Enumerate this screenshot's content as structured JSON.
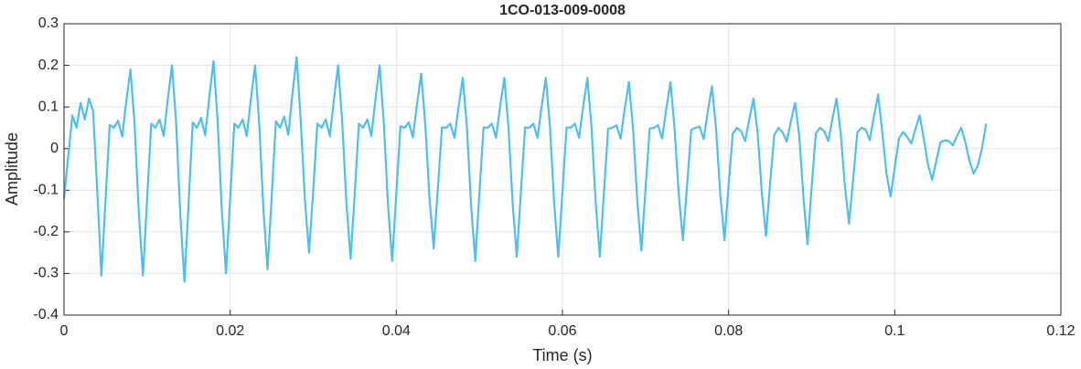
{
  "chart_data": {
    "type": "line",
    "title": "1CO-013-009-0008",
    "xlabel": "Time (s)",
    "ylabel": "Amplitude",
    "color": "#4dbeee",
    "grid": true,
    "xlim": [
      0,
      0.12
    ],
    "xticks": [
      0,
      0.02,
      0.04,
      0.06,
      0.08,
      0.1,
      0.12
    ],
    "ylim": [
      -0.4,
      0.3
    ],
    "yticks": [
      -0.4,
      -0.3,
      -0.2,
      -0.1,
      0,
      0.1,
      0.2,
      0.3
    ],
    "x": [
      0,
      0.0005,
      0.001,
      0.0015,
      0.002,
      0.0025,
      0.003,
      0.0035,
      0.004,
      0.0045,
      0.005,
      0.0055,
      0.006,
      0.0065,
      0.007,
      0.0075,
      0.008,
      0.0085,
      0.009,
      0.0095,
      0.01,
      0.0105,
      0.011,
      0.0115,
      0.012,
      0.0125,
      0.013,
      0.0135,
      0.014,
      0.0145,
      0.015,
      0.0155,
      0.016,
      0.0165,
      0.017,
      0.0175,
      0.018,
      0.0185,
      0.019,
      0.0195,
      0.02,
      0.0205,
      0.021,
      0.0215,
      0.022,
      0.0225,
      0.023,
      0.0235,
      0.024,
      0.0245,
      0.025,
      0.0255,
      0.026,
      0.0265,
      0.027,
      0.0275,
      0.028,
      0.0285,
      0.029,
      0.0295,
      0.03,
      0.0305,
      0.031,
      0.0315,
      0.032,
      0.0325,
      0.033,
      0.0335,
      0.034,
      0.0345,
      0.035,
      0.0355,
      0.036,
      0.0365,
      0.037,
      0.0375,
      0.038,
      0.0385,
      0.039,
      0.0395,
      0.04,
      0.0405,
      0.041,
      0.0415,
      0.042,
      0.0425,
      0.043,
      0.0435,
      0.044,
      0.0445,
      0.045,
      0.0455,
      0.046,
      0.0465,
      0.047,
      0.0475,
      0.048,
      0.0485,
      0.049,
      0.0495,
      0.05,
      0.0505,
      0.051,
      0.0515,
      0.052,
      0.0525,
      0.053,
      0.0535,
      0.054,
      0.0545,
      0.055,
      0.0555,
      0.056,
      0.0565,
      0.057,
      0.0575,
      0.058,
      0.0585,
      0.059,
      0.0595,
      0.06,
      0.0605,
      0.061,
      0.0615,
      0.062,
      0.0625,
      0.063,
      0.0635,
      0.064,
      0.0645,
      0.065,
      0.0655,
      0.066,
      0.0665,
      0.067,
      0.0675,
      0.068,
      0.0685,
      0.069,
      0.0695,
      0.07,
      0.0705,
      0.071,
      0.0715,
      0.072,
      0.0725,
      0.073,
      0.0735,
      0.074,
      0.0745,
      0.075,
      0.0755,
      0.076,
      0.0765,
      0.077,
      0.0775,
      0.078,
      0.0785,
      0.079,
      0.0795,
      0.08,
      0.0805,
      0.081,
      0.0815,
      0.082,
      0.0825,
      0.083,
      0.0835,
      0.084,
      0.0845,
      0.085,
      0.0855,
      0.086,
      0.0865,
      0.087,
      0.0875,
      0.088,
      0.0885,
      0.089,
      0.0895,
      0.09,
      0.0905,
      0.091,
      0.0915,
      0.092,
      0.0925,
      0.093,
      0.0935,
      0.094,
      0.0945,
      0.095,
      0.0955,
      0.096,
      0.0965,
      0.097,
      0.0975,
      0.098,
      0.0985,
      0.099,
      0.0995,
      0.1,
      0.1005,
      0.101,
      0.1015,
      0.102,
      0.1025,
      0.103,
      0.1035,
      0.104,
      0.1045,
      0.105,
      0.1055,
      0.106,
      0.1065,
      0.107,
      0.1075,
      0.108,
      0.1085,
      0.109,
      0.1095,
      0.11,
      0.1105,
      0.111
    ],
    "values": [
      -0.12,
      -0.02,
      0.08,
      0.05,
      0.11,
      0.07,
      0.12,
      0.09,
      -0.1,
      -0.305,
      -0.122,
      0.057,
      0.05,
      0.067,
      0.029,
      0.114,
      0.19,
      0.057,
      -0.153,
      -0.305,
      -0.122,
      0.06,
      0.05,
      0.07,
      0.03,
      0.12,
      0.2,
      0.06,
      -0.16,
      -0.32,
      -0.128,
      0.063,
      0.05,
      0.074,
      0.032,
      0.126,
      0.21,
      0.063,
      -0.15,
      -0.3,
      -0.12,
      0.06,
      0.05,
      0.07,
      0.03,
      0.12,
      0.2,
      0.06,
      -0.145,
      -0.29,
      -0.116,
      0.066,
      0.05,
      0.077,
      0.033,
      0.132,
      0.22,
      0.066,
      -0.125,
      -0.25,
      -0.1,
      0.06,
      0.05,
      0.07,
      0.03,
      0.12,
      0.2,
      0.06,
      -0.133,
      -0.265,
      -0.106,
      0.06,
      0.05,
      0.07,
      0.03,
      0.12,
      0.2,
      0.06,
      -0.135,
      -0.27,
      -0.108,
      0.054,
      0.05,
      0.063,
      0.027,
      0.108,
      0.18,
      0.054,
      -0.12,
      -0.24,
      -0.096,
      0.051,
      0.05,
      0.06,
      0.026,
      0.102,
      0.17,
      0.051,
      -0.135,
      -0.27,
      -0.108,
      0.051,
      0.05,
      0.06,
      0.026,
      0.102,
      0.17,
      0.051,
      -0.13,
      -0.26,
      -0.104,
      0.051,
      0.05,
      0.06,
      0.026,
      0.102,
      0.17,
      0.051,
      -0.13,
      -0.26,
      -0.104,
      0.051,
      0.05,
      0.06,
      0.026,
      0.102,
      0.17,
      0.051,
      -0.13,
      -0.26,
      -0.104,
      0.048,
      0.05,
      0.056,
      0.024,
      0.096,
      0.16,
      0.048,
      -0.123,
      -0.245,
      -0.098,
      0.048,
      0.05,
      0.056,
      0.024,
      0.096,
      0.16,
      0.048,
      -0.11,
      -0.22,
      -0.088,
      0.045,
      0.05,
      0.053,
      0.023,
      0.09,
      0.15,
      0.045,
      -0.11,
      -0.22,
      -0.088,
      0.036,
      0.05,
      0.042,
      0.018,
      0.072,
      0.12,
      0.036,
      -0.105,
      -0.21,
      -0.084,
      0.033,
      0.05,
      0.039,
      0.017,
      0.066,
      0.11,
      0.033,
      -0.115,
      -0.23,
      -0.092,
      0.036,
      0.05,
      0.042,
      0.018,
      0.072,
      0.12,
      0.036,
      -0.09,
      -0.18,
      -0.072,
      0.039,
      0.05,
      0.046,
      0.02,
      0.078,
      0.13,
      0.039,
      -0.058,
      -0.115,
      -0.046,
      0.024,
      0.04,
      0.028,
      0.012,
      0.048,
      0.08,
      0.024,
      -0.038,
      -0.075,
      -0.03,
      0.015,
      0.02,
      0.018,
      0.008,
      0.03,
      0.05,
      0.015,
      -0.03,
      -0.06,
      -0.04,
      0.0,
      0.06
    ]
  }
}
